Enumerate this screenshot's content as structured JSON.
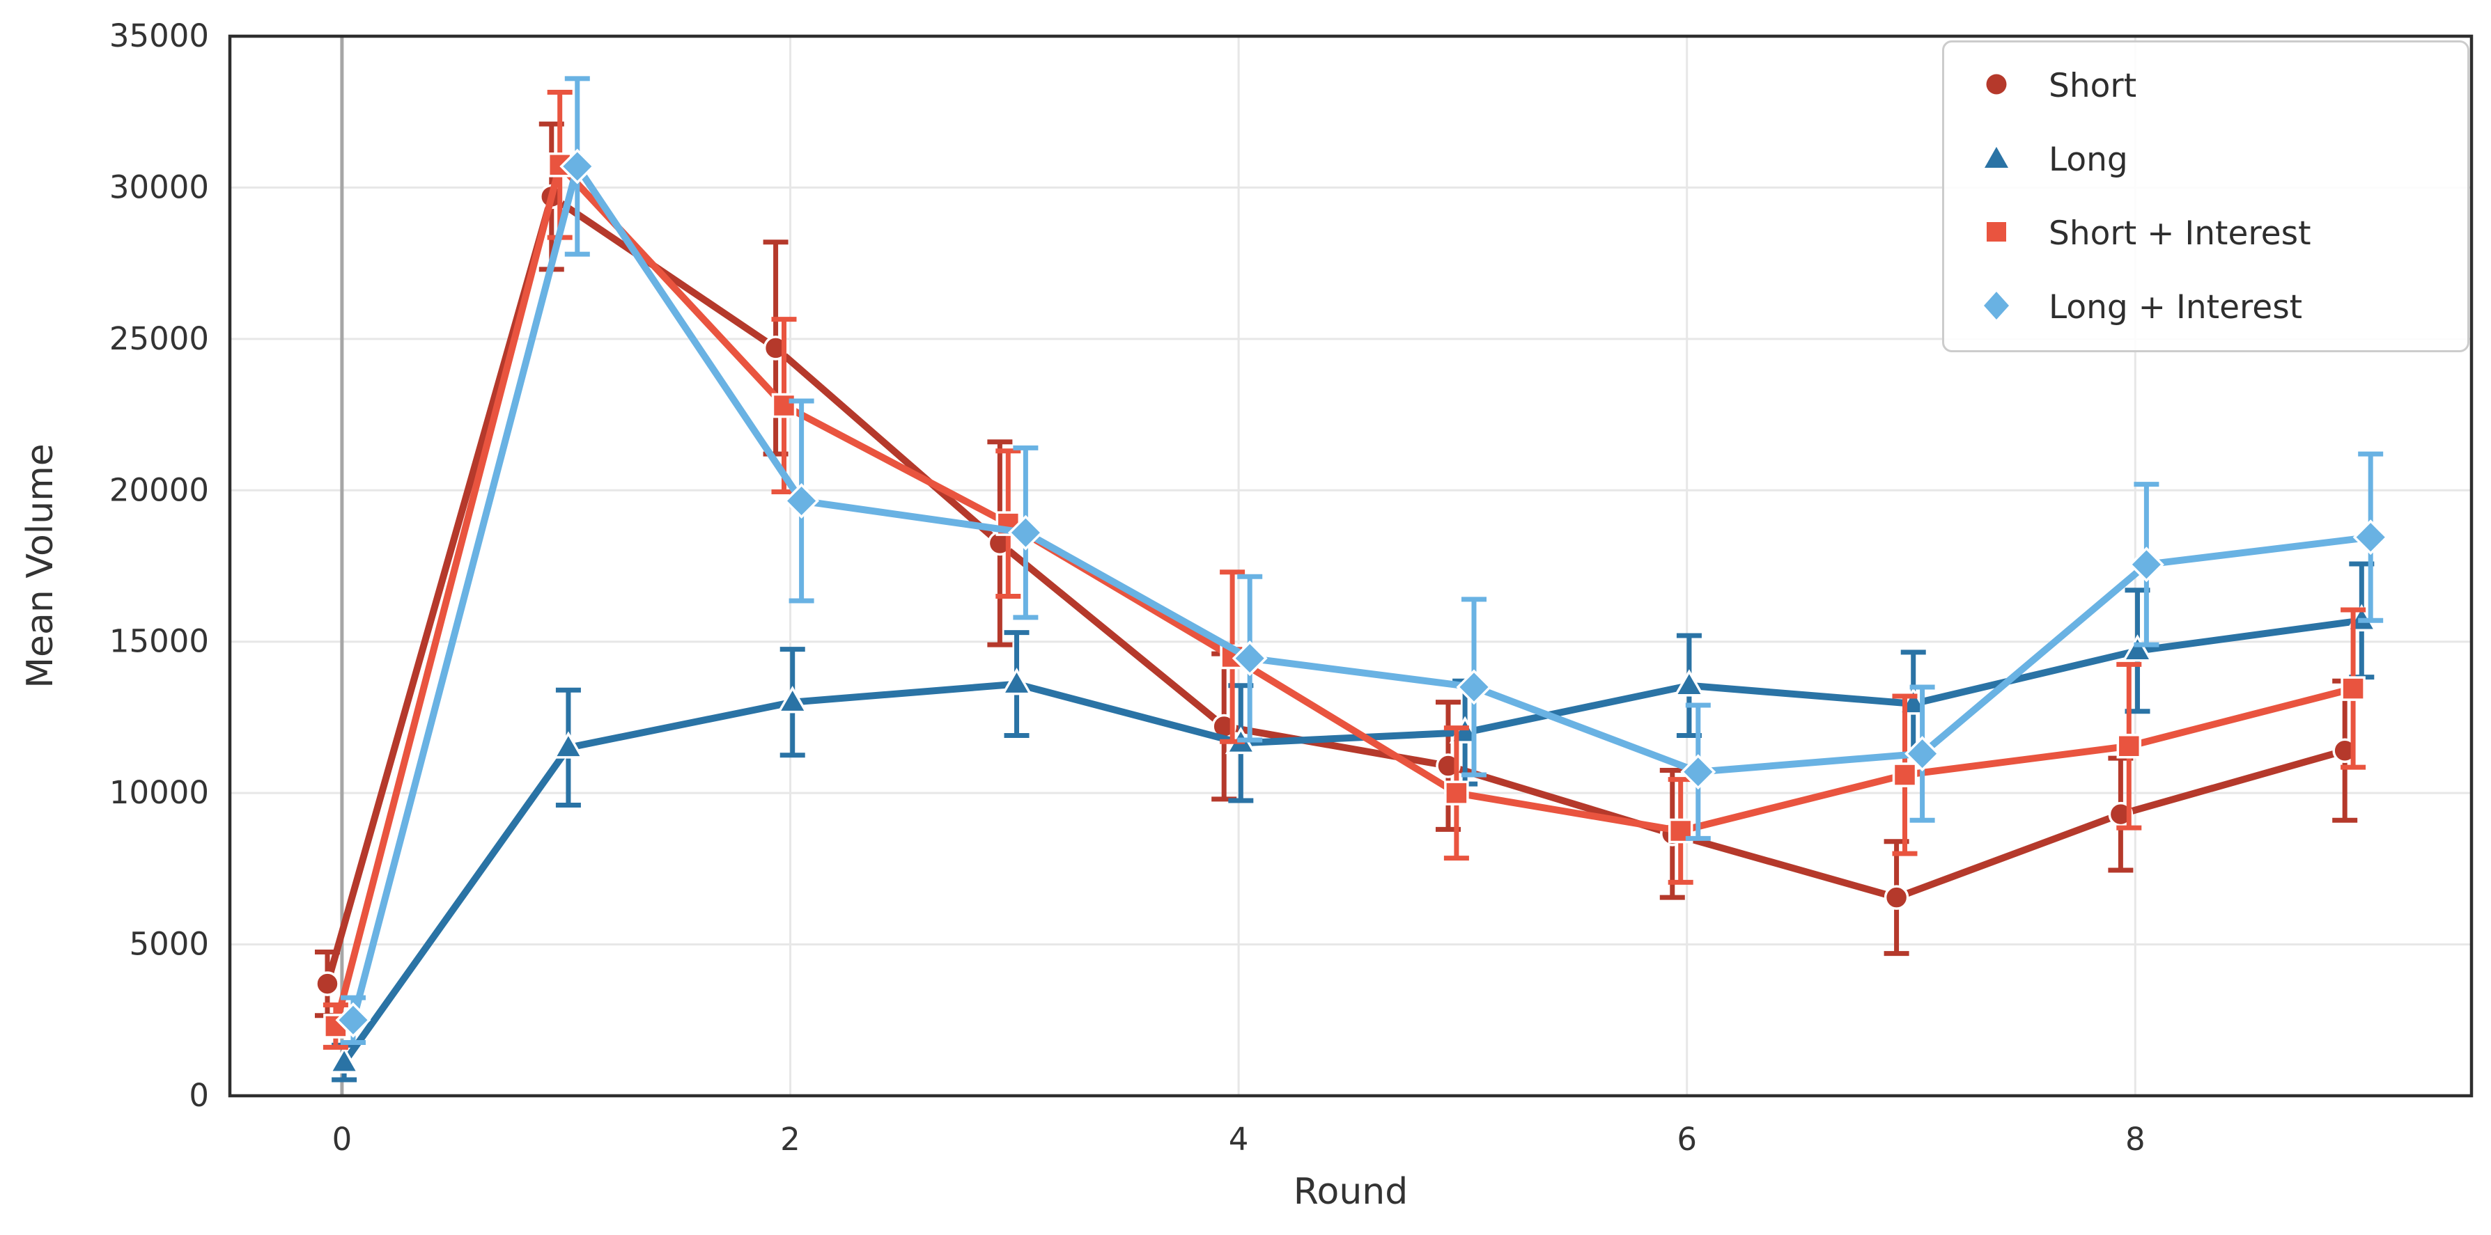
{
  "chart_data": {
    "type": "line",
    "title": "",
    "xlabel": "Round",
    "ylabel": "Mean Volume",
    "x": [
      0,
      1,
      2,
      3,
      4,
      5,
      6,
      7,
      8,
      9
    ],
    "xlim": [
      -0.5,
      9.5
    ],
    "ylim": [
      0,
      35000
    ],
    "xticks": [
      0,
      2,
      4,
      6,
      8
    ],
    "yticks": [
      0,
      5000,
      10000,
      15000,
      20000,
      25000,
      30000,
      35000
    ],
    "grid": true,
    "legend_position": "upper right",
    "vline_x": 0,
    "error_bars": true,
    "colors": {
      "grid": "#e7e7e7",
      "spine": "#2e2e2e",
      "tick_text": "#333333",
      "vline": "#a6a6a6",
      "marker_edge": "#ffffff"
    },
    "series": [
      {
        "name": "Short",
        "marker": "circle",
        "color": "#b5392b",
        "x_offset": -0.065,
        "values": [
          3700,
          29700,
          24700,
          18250,
          12200,
          10900,
          8650,
          6550,
          9300,
          11400
        ],
        "errors": [
          1050,
          2400,
          3500,
          3350,
          2400,
          2100,
          2100,
          1850,
          1850,
          2300
        ]
      },
      {
        "name": "Long",
        "marker": "triangle",
        "color": "#2a73a5",
        "x_offset": 0.01,
        "values": [
          1100,
          11500,
          13000,
          13600,
          11650,
          12000,
          13550,
          12950,
          14700,
          15700
        ],
        "errors": [
          570,
          1900,
          1750,
          1700,
          1900,
          1700,
          1650,
          1700,
          2000,
          1870
        ]
      },
      {
        "name": "Short + Interest",
        "marker": "square",
        "color": "#e9543f",
        "x_offset": -0.028,
        "values": [
          2300,
          30750,
          22800,
          18900,
          14500,
          10000,
          8750,
          10600,
          11550,
          13450
        ],
        "errors": [
          700,
          2400,
          2850,
          2400,
          2800,
          2150,
          1700,
          2600,
          2700,
          2600
        ]
      },
      {
        "name": "Long + Interest",
        "marker": "diamond",
        "color": "#69b2e3",
        "x_offset": 0.05,
        "values": [
          2500,
          30700,
          19650,
          18600,
          14450,
          13500,
          10700,
          11300,
          17550,
          18450
        ],
        "errors": [
          740,
          2900,
          3300,
          2800,
          2700,
          2900,
          2200,
          2200,
          2650,
          2750
        ]
      }
    ]
  }
}
